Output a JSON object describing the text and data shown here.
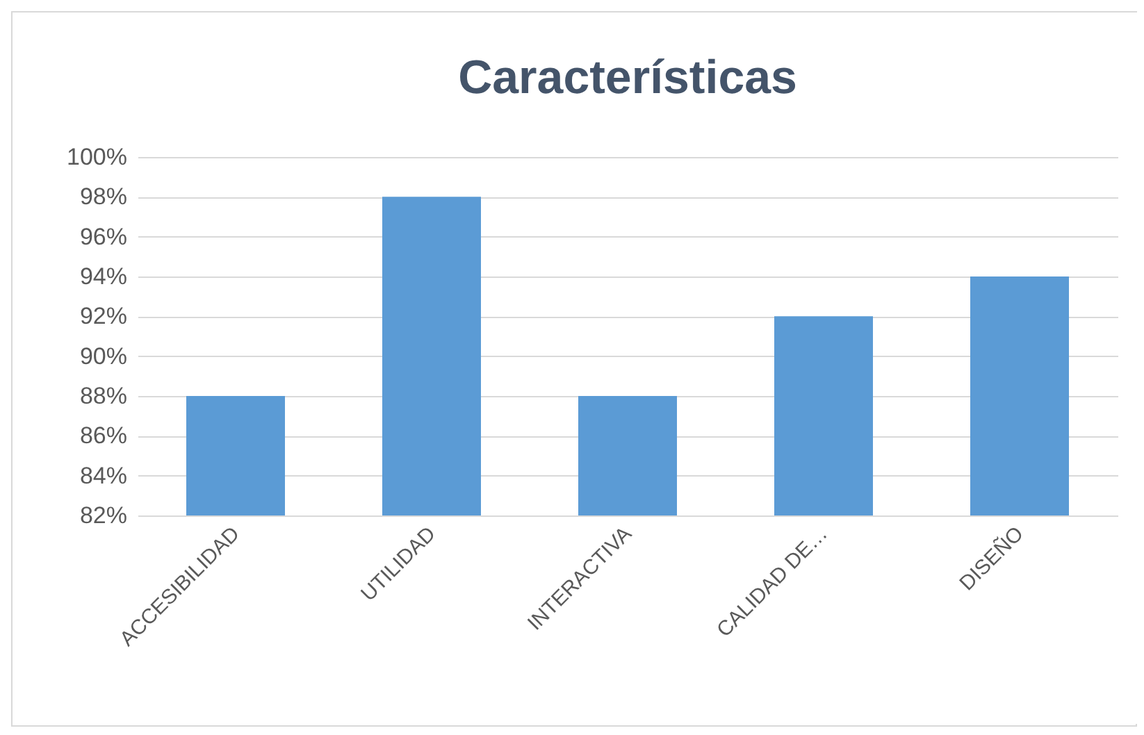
{
  "chart_data": {
    "type": "bar",
    "title": "Características",
    "categories": [
      "ACCESIBILIDAD",
      "UTILIDAD",
      "INTERACTIVA",
      "CALIDAD DE…",
      "DISEÑO"
    ],
    "values": [
      88,
      98,
      88,
      92,
      94
    ],
    "color": "#5b9bd5",
    "ylim": [
      82,
      100
    ],
    "yticks": [
      {
        "value": 82,
        "label": "82%"
      },
      {
        "value": 84,
        "label": "84%"
      },
      {
        "value": 86,
        "label": "86%"
      },
      {
        "value": 88,
        "label": "88%"
      },
      {
        "value": 90,
        "label": "90%"
      },
      {
        "value": 92,
        "label": "92%"
      },
      {
        "value": 94,
        "label": "94%"
      },
      {
        "value": 96,
        "label": "96%"
      },
      {
        "value": 98,
        "label": "98%"
      },
      {
        "value": 100,
        "label": "100%"
      }
    ],
    "grid": "y"
  }
}
